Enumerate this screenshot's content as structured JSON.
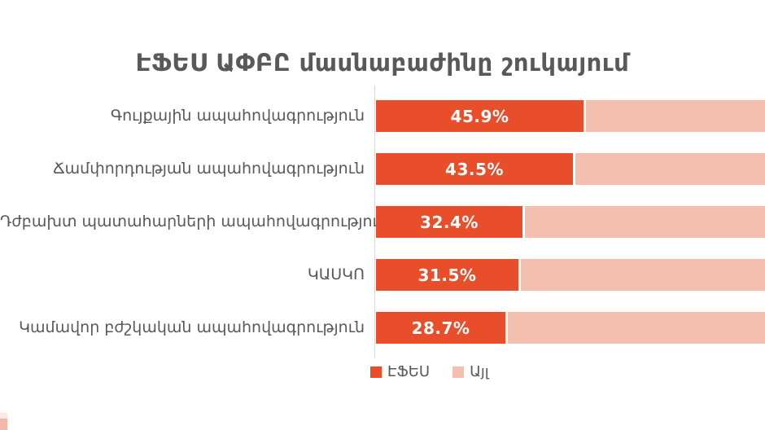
{
  "title": "ԷՖԵՍ ԱՓԲԸ մասնաբաժինը շուկայում",
  "colors": {
    "primary": "#E94E2B",
    "secondary": "#F5BFAF",
    "text_gray": "#595959",
    "axis_line": "#D9D9D9",
    "corner_accent_top": "#FBE8E3",
    "corner_accent_bottom": "#F3B7A9"
  },
  "legend": {
    "items": [
      {
        "label": "ԷՖԵՍ",
        "color": "#E94E2B"
      },
      {
        "label": "Այլ",
        "color": "#F5BFAF"
      }
    ]
  },
  "chart_data": {
    "type": "bar",
    "orientation": "horizontal",
    "stacked": true,
    "stacked_total": 100,
    "title": "ԷՖԵՍ ԱՓԲԸ մասնաբաժինը շուկայում",
    "xlabel": "",
    "ylabel": "",
    "xlim": [
      0,
      100
    ],
    "grid": false,
    "legend_position": "bottom",
    "categories": [
      "Գույքային ապահովագրություն",
      "Ճամփորդության ապահովագրություն",
      "Դժբախտ պատահարների ապահովագրություն",
      "ԿԱՍԿՈ",
      "Կամավոր բժշկական ապահովագրություն"
    ],
    "series": [
      {
        "name": "ԷՖԵՍ",
        "color": "#E94E2B",
        "values": [
          45.9,
          43.5,
          32.4,
          31.5,
          28.7
        ],
        "data_labels": [
          "45.9%",
          "43.5%",
          "32.4%",
          "31.5%",
          "28.7%"
        ]
      },
      {
        "name": "Այլ",
        "color": "#F5BFAF",
        "values": [
          54.1,
          56.5,
          67.6,
          68.5,
          71.3
        ],
        "data_labels": []
      }
    ]
  }
}
